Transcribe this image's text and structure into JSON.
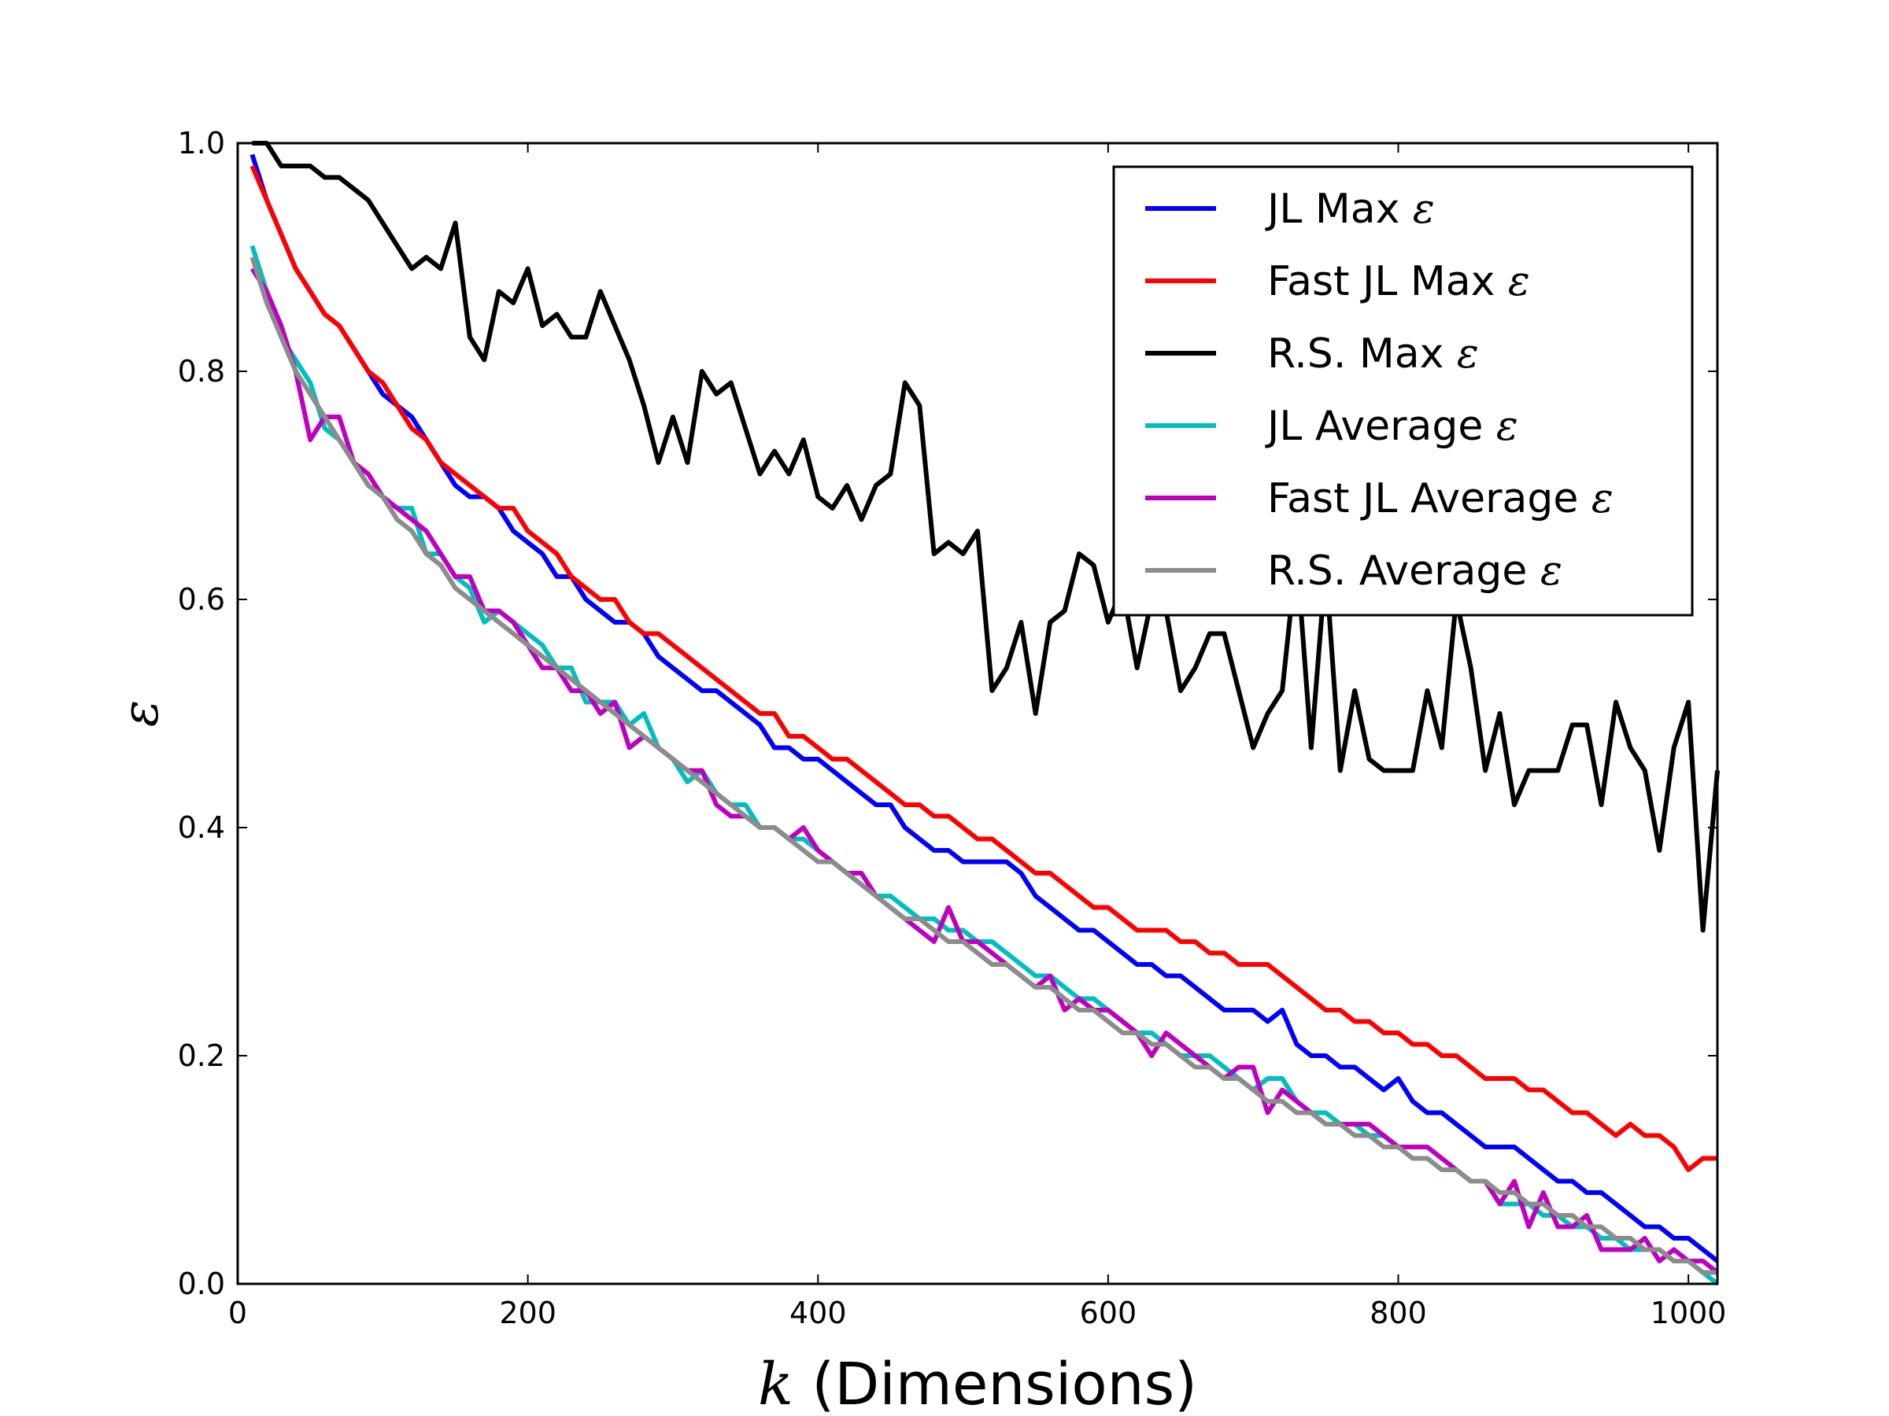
{
  "chart_data": {
    "type": "line",
    "xlabel_var": "k",
    "xlabel_text": " (Dimensions)",
    "ylabel": "ε",
    "xlim": [
      0,
      1020
    ],
    "ylim": [
      0,
      1.0
    ],
    "xticks": [
      0,
      200,
      400,
      600,
      800,
      1000
    ],
    "yticks": [
      "0.0",
      "0.2",
      "0.4",
      "0.6",
      "0.8",
      "1.0"
    ],
    "grid": false,
    "legend_position": "top-right",
    "x": [
      10,
      20,
      30,
      40,
      50,
      60,
      70,
      80,
      90,
      100,
      110,
      120,
      130,
      140,
      150,
      160,
      170,
      180,
      190,
      200,
      210,
      220,
      230,
      240,
      250,
      260,
      270,
      280,
      290,
      300,
      310,
      320,
      330,
      340,
      350,
      360,
      370,
      380,
      390,
      400,
      410,
      420,
      430,
      440,
      450,
      460,
      470,
      480,
      490,
      500,
      510,
      520,
      530,
      540,
      550,
      560,
      570,
      580,
      590,
      600,
      610,
      620,
      630,
      640,
      650,
      660,
      670,
      680,
      690,
      700,
      710,
      720,
      730,
      740,
      750,
      760,
      770,
      780,
      790,
      800,
      810,
      820,
      830,
      840,
      850,
      860,
      870,
      880,
      890,
      900,
      910,
      920,
      930,
      940,
      950,
      960,
      970,
      980,
      990,
      1000,
      1010,
      1020
    ],
    "series": [
      {
        "name": "JL Max",
        "symbol": "ε",
        "color": "#0000ff",
        "values": [
          0.99,
          0.95,
          0.92,
          0.89,
          0.87,
          0.85,
          0.84,
          0.82,
          0.8,
          0.78,
          0.77,
          0.76,
          0.74,
          0.72,
          0.7,
          0.69,
          0.69,
          0.68,
          0.66,
          0.65,
          0.64,
          0.62,
          0.62,
          0.6,
          0.59,
          0.58,
          0.58,
          0.57,
          0.55,
          0.54,
          0.53,
          0.52,
          0.52,
          0.51,
          0.5,
          0.49,
          0.47,
          0.47,
          0.46,
          0.46,
          0.45,
          0.44,
          0.43,
          0.42,
          0.42,
          0.4,
          0.39,
          0.38,
          0.38,
          0.37,
          0.37,
          0.37,
          0.37,
          0.36,
          0.34,
          0.33,
          0.32,
          0.31,
          0.31,
          0.3,
          0.29,
          0.28,
          0.28,
          0.27,
          0.27,
          0.26,
          0.25,
          0.24,
          0.24,
          0.24,
          0.23,
          0.24,
          0.21,
          0.2,
          0.2,
          0.19,
          0.19,
          0.18,
          0.17,
          0.18,
          0.16,
          0.15,
          0.15,
          0.14,
          0.13,
          0.12,
          0.12,
          0.12,
          0.11,
          0.1,
          0.09,
          0.09,
          0.08,
          0.08,
          0.07,
          0.06,
          0.05,
          0.05,
          0.04,
          0.04,
          0.03,
          0.02
        ]
      },
      {
        "name": "Fast JL Max",
        "symbol": "ε",
        "color": "#ff0000",
        "values": [
          0.98,
          0.95,
          0.92,
          0.89,
          0.87,
          0.85,
          0.84,
          0.82,
          0.8,
          0.79,
          0.77,
          0.75,
          0.74,
          0.72,
          0.71,
          0.7,
          0.69,
          0.68,
          0.68,
          0.66,
          0.65,
          0.64,
          0.62,
          0.61,
          0.6,
          0.6,
          0.58,
          0.57,
          0.57,
          0.56,
          0.55,
          0.54,
          0.53,
          0.52,
          0.51,
          0.5,
          0.5,
          0.48,
          0.48,
          0.47,
          0.46,
          0.46,
          0.45,
          0.44,
          0.43,
          0.42,
          0.42,
          0.41,
          0.41,
          0.4,
          0.39,
          0.39,
          0.38,
          0.37,
          0.36,
          0.36,
          0.35,
          0.34,
          0.33,
          0.33,
          0.32,
          0.31,
          0.31,
          0.31,
          0.3,
          0.3,
          0.29,
          0.29,
          0.28,
          0.28,
          0.28,
          0.27,
          0.26,
          0.25,
          0.24,
          0.24,
          0.23,
          0.23,
          0.22,
          0.22,
          0.21,
          0.21,
          0.2,
          0.2,
          0.19,
          0.18,
          0.18,
          0.18,
          0.17,
          0.17,
          0.16,
          0.15,
          0.15,
          0.14,
          0.13,
          0.14,
          0.13,
          0.13,
          0.12,
          0.1,
          0.11,
          0.11
        ]
      },
      {
        "name": "R.S. Max",
        "symbol": "ε",
        "color": "#000000",
        "values": [
          1.0,
          1.0,
          0.98,
          0.98,
          0.98,
          0.97,
          0.97,
          0.96,
          0.95,
          0.93,
          0.91,
          0.89,
          0.9,
          0.89,
          0.93,
          0.83,
          0.81,
          0.87,
          0.86,
          0.89,
          0.84,
          0.85,
          0.83,
          0.83,
          0.87,
          0.84,
          0.81,
          0.77,
          0.72,
          0.76,
          0.72,
          0.8,
          0.78,
          0.79,
          0.75,
          0.71,
          0.73,
          0.71,
          0.74,
          0.69,
          0.68,
          0.7,
          0.67,
          0.7,
          0.71,
          0.79,
          0.77,
          0.64,
          0.65,
          0.64,
          0.66,
          0.52,
          0.54,
          0.58,
          0.5,
          0.58,
          0.59,
          0.64,
          0.63,
          0.58,
          0.61,
          0.54,
          0.6,
          0.59,
          0.52,
          0.54,
          0.57,
          0.57,
          0.52,
          0.47,
          0.5,
          0.52,
          0.64,
          0.47,
          0.63,
          0.45,
          0.52,
          0.46,
          0.45,
          0.45,
          0.45,
          0.52,
          0.47,
          0.6,
          0.54,
          0.45,
          0.5,
          0.42,
          0.45,
          0.45,
          0.45,
          0.49,
          0.49,
          0.42,
          0.51,
          0.47,
          0.45,
          0.38,
          0.47,
          0.51,
          0.31,
          0.45
        ]
      },
      {
        "name": "JL Average",
        "symbol": "ε",
        "color": "#00bfbf",
        "values": [
          0.91,
          0.87,
          0.83,
          0.81,
          0.79,
          0.75,
          0.74,
          0.72,
          0.7,
          0.69,
          0.68,
          0.68,
          0.64,
          0.64,
          0.62,
          0.61,
          0.58,
          0.59,
          0.58,
          0.57,
          0.56,
          0.54,
          0.54,
          0.51,
          0.51,
          0.51,
          0.49,
          0.5,
          0.47,
          0.46,
          0.44,
          0.45,
          0.43,
          0.42,
          0.42,
          0.4,
          0.4,
          0.39,
          0.39,
          0.38,
          0.37,
          0.36,
          0.35,
          0.34,
          0.34,
          0.33,
          0.32,
          0.32,
          0.31,
          0.31,
          0.3,
          0.3,
          0.29,
          0.28,
          0.27,
          0.27,
          0.26,
          0.25,
          0.25,
          0.24,
          0.23,
          0.22,
          0.22,
          0.21,
          0.2,
          0.2,
          0.2,
          0.19,
          0.18,
          0.17,
          0.18,
          0.18,
          0.16,
          0.15,
          0.15,
          0.14,
          0.14,
          0.13,
          0.13,
          0.12,
          0.11,
          0.11,
          0.1,
          0.1,
          0.09,
          0.09,
          0.07,
          0.07,
          0.07,
          0.06,
          0.06,
          0.05,
          0.05,
          0.04,
          0.04,
          0.03,
          0.03,
          0.03,
          0.02,
          0.02,
          0.01,
          0.0
        ]
      },
      {
        "name": "Fast JL Average",
        "symbol": "ε",
        "color": "#bf00bf",
        "values": [
          0.89,
          0.87,
          0.84,
          0.8,
          0.74,
          0.76,
          0.76,
          0.72,
          0.71,
          0.69,
          0.68,
          0.67,
          0.66,
          0.64,
          0.62,
          0.62,
          0.59,
          0.59,
          0.58,
          0.56,
          0.54,
          0.54,
          0.52,
          0.52,
          0.5,
          0.51,
          0.47,
          0.48,
          0.47,
          0.46,
          0.45,
          0.45,
          0.42,
          0.41,
          0.41,
          0.4,
          0.4,
          0.39,
          0.4,
          0.38,
          0.37,
          0.36,
          0.36,
          0.34,
          0.33,
          0.32,
          0.31,
          0.3,
          0.33,
          0.3,
          0.3,
          0.29,
          0.28,
          0.27,
          0.26,
          0.27,
          0.24,
          0.25,
          0.24,
          0.24,
          0.23,
          0.22,
          0.2,
          0.22,
          0.21,
          0.2,
          0.19,
          0.18,
          0.19,
          0.19,
          0.15,
          0.17,
          0.16,
          0.15,
          0.14,
          0.14,
          0.14,
          0.14,
          0.13,
          0.12,
          0.12,
          0.12,
          0.11,
          0.1,
          0.09,
          0.09,
          0.07,
          0.09,
          0.05,
          0.08,
          0.05,
          0.05,
          0.06,
          0.03,
          0.03,
          0.03,
          0.04,
          0.02,
          0.03,
          0.02,
          0.02,
          0.01
        ]
      },
      {
        "name": "R.S. Average",
        "symbol": "ε",
        "color": "#8c8c8c",
        "values": [
          0.9,
          0.86,
          0.83,
          0.8,
          0.78,
          0.76,
          0.74,
          0.72,
          0.7,
          0.69,
          0.67,
          0.66,
          0.64,
          0.63,
          0.61,
          0.6,
          0.59,
          0.58,
          0.57,
          0.56,
          0.55,
          0.54,
          0.53,
          0.52,
          0.51,
          0.5,
          0.49,
          0.48,
          0.47,
          0.46,
          0.45,
          0.44,
          0.43,
          0.42,
          0.41,
          0.4,
          0.4,
          0.39,
          0.38,
          0.37,
          0.37,
          0.36,
          0.35,
          0.34,
          0.33,
          0.32,
          0.32,
          0.31,
          0.3,
          0.3,
          0.29,
          0.28,
          0.28,
          0.27,
          0.26,
          0.26,
          0.25,
          0.24,
          0.24,
          0.23,
          0.22,
          0.22,
          0.21,
          0.21,
          0.2,
          0.19,
          0.19,
          0.18,
          0.18,
          0.17,
          0.16,
          0.16,
          0.15,
          0.15,
          0.14,
          0.14,
          0.13,
          0.13,
          0.12,
          0.12,
          0.11,
          0.11,
          0.1,
          0.1,
          0.09,
          0.09,
          0.08,
          0.08,
          0.07,
          0.07,
          0.06,
          0.06,
          0.05,
          0.05,
          0.04,
          0.04,
          0.03,
          0.03,
          0.02,
          0.02,
          0.01,
          0.01
        ]
      }
    ]
  }
}
